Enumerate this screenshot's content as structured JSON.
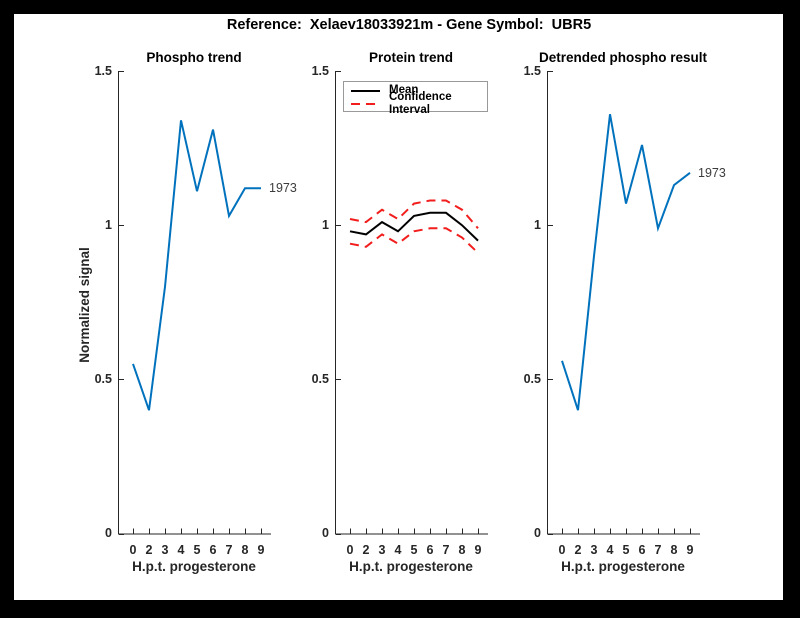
{
  "figure": {
    "suptitle": "Reference:  Xelaev18033921m - Gene Symbol:  UBR5"
  },
  "colors": {
    "blue": "#0072BD",
    "red": "#f21d1d",
    "black": "#000000",
    "axis": "#262626",
    "background": "#ffffff",
    "frame": "#000000"
  },
  "chart_data": [
    {
      "type": "line",
      "title": "Phospho trend",
      "xlabel": "H.p.t. progesterone",
      "ylabel": "Normalized signal",
      "x_tick_labels": [
        "0",
        "2",
        "3",
        "4",
        "5",
        "6",
        "7",
        "8",
        "9"
      ],
      "y_tick_labels": [
        "0",
        "0.5",
        "1",
        "1.5"
      ],
      "y_tick_values": [
        0,
        0.5,
        1,
        1.5
      ],
      "ylim": [
        0,
        1.5
      ],
      "grid": false,
      "legend": null,
      "series": [
        {
          "name": "1973",
          "color_key": "blue",
          "style": "solid",
          "end_label": "1973",
          "values": [
            0.55,
            0.4,
            0.8,
            1.34,
            1.11,
            1.31,
            1.03,
            1.12,
            1.12
          ]
        }
      ]
    },
    {
      "type": "line",
      "title": "Protein trend",
      "xlabel": "H.p.t. progesterone",
      "ylabel": null,
      "x_tick_labels": [
        "0",
        "2",
        "3",
        "4",
        "5",
        "6",
        "7",
        "8",
        "9"
      ],
      "y_tick_labels": [
        "0",
        "0.5",
        "1",
        "1.5"
      ],
      "y_tick_values": [
        0,
        0.5,
        1,
        1.5
      ],
      "ylim": [
        0,
        1.5
      ],
      "grid": false,
      "legend": {
        "position": "northwest",
        "items": [
          {
            "label": "Mean",
            "color_key": "black",
            "style": "solid"
          },
          {
            "label": "Confidence Interval",
            "color_key": "red",
            "style": "dashed"
          }
        ]
      },
      "series": [
        {
          "name": "Mean",
          "color_key": "black",
          "style": "solid",
          "end_label": null,
          "values": [
            0.98,
            0.97,
            1.01,
            0.98,
            1.03,
            1.04,
            1.04,
            1.0,
            0.95
          ]
        },
        {
          "name": "Confidence Interval upper",
          "color_key": "red",
          "style": "dashed",
          "end_label": null,
          "values": [
            1.02,
            1.01,
            1.05,
            1.02,
            1.07,
            1.08,
            1.08,
            1.05,
            0.99
          ]
        },
        {
          "name": "Confidence Interval lower",
          "color_key": "red",
          "style": "dashed",
          "end_label": null,
          "values": [
            0.94,
            0.93,
            0.97,
            0.94,
            0.98,
            0.99,
            0.99,
            0.96,
            0.91
          ]
        }
      ]
    },
    {
      "type": "line",
      "title": "Detrended phospho result",
      "xlabel": "H.p.t. progesterone",
      "ylabel": null,
      "x_tick_labels": [
        "0",
        "2",
        "3",
        "4",
        "5",
        "6",
        "7",
        "8",
        "9"
      ],
      "y_tick_labels": [
        "0",
        "0.5",
        "1",
        "1.5"
      ],
      "y_tick_values": [
        0,
        0.5,
        1,
        1.5
      ],
      "ylim": [
        0,
        1.5
      ],
      "grid": false,
      "legend": null,
      "series": [
        {
          "name": "1973",
          "color_key": "blue",
          "style": "solid",
          "end_label": "1973",
          "values": [
            0.56,
            0.4,
            0.9,
            1.36,
            1.07,
            1.26,
            0.99,
            1.13,
            1.17
          ]
        }
      ]
    }
  ]
}
